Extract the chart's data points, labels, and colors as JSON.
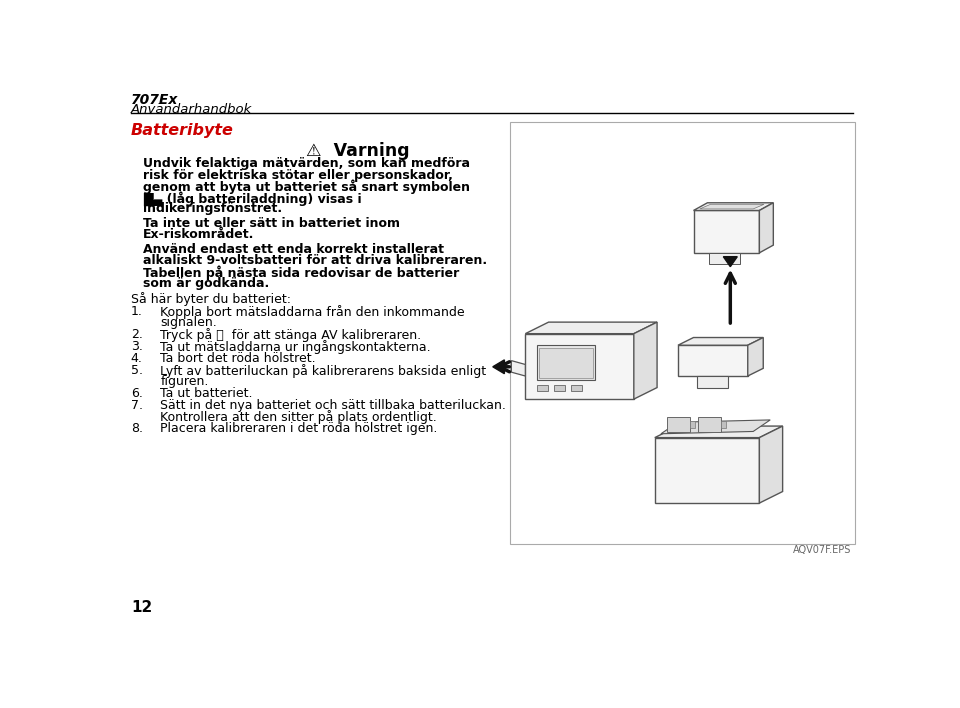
{
  "bg_color": "#ffffff",
  "header_title": "707Ex",
  "header_subtitle": "Användarhandbok",
  "section_title": "Batteribyte",
  "warning_title": "⚠  Varning",
  "page_number": "12",
  "caption": "AQV07F.EPS",
  "text_color": "#000000",
  "rule_color": "#000000",
  "section_color": "#cc0000",
  "caption_color": "#666666",
  "box_edge_color": "#aaaaaa",
  "warning_bold_lines": [
    "Undvik felaktiga mätvärden, som kan medföra",
    "risk för elektriska stötar eller personskador,",
    "genom att byta ut batteriet så snart symbolen",
    "█▄ (låg batteriladdning) visas i",
    "indikeringsfönstret."
  ],
  "para2_lines": [
    "Ta inte ut eller sätt in batteriet inom",
    "Ex-riskområdet."
  ],
  "para3_lines": [
    "Använd endast ett enda korrekt installerat",
    "alkaliskt 9-voltsbatteri för att driva kalibreraren.",
    "Tabellen på nästa sida redovisar de batterier",
    "som är godkända."
  ],
  "intro_line": "Så här byter du batteriet:",
  "steps": [
    [
      "Koppla bort mätsladdarna från den inkommande",
      "signalen."
    ],
    [
      "Tryck på ⓞ  för att stänga AV kalibreraren."
    ],
    [
      "Ta ut mätsladdarna ur ingångskontakterna."
    ],
    [
      "Ta bort det röda hölstret."
    ],
    [
      "Lyft av batteriluckan på kalibrerarens baksida enligt",
      "figuren."
    ],
    [
      "Ta ut batteriet."
    ],
    [
      "Sätt in det nya batteriet och sätt tillbaka batteriluckan.",
      "Kontrollera att den sitter på plats ordentligt."
    ],
    [
      "Placera kalibreraren i det röda hölstret igen."
    ]
  ]
}
